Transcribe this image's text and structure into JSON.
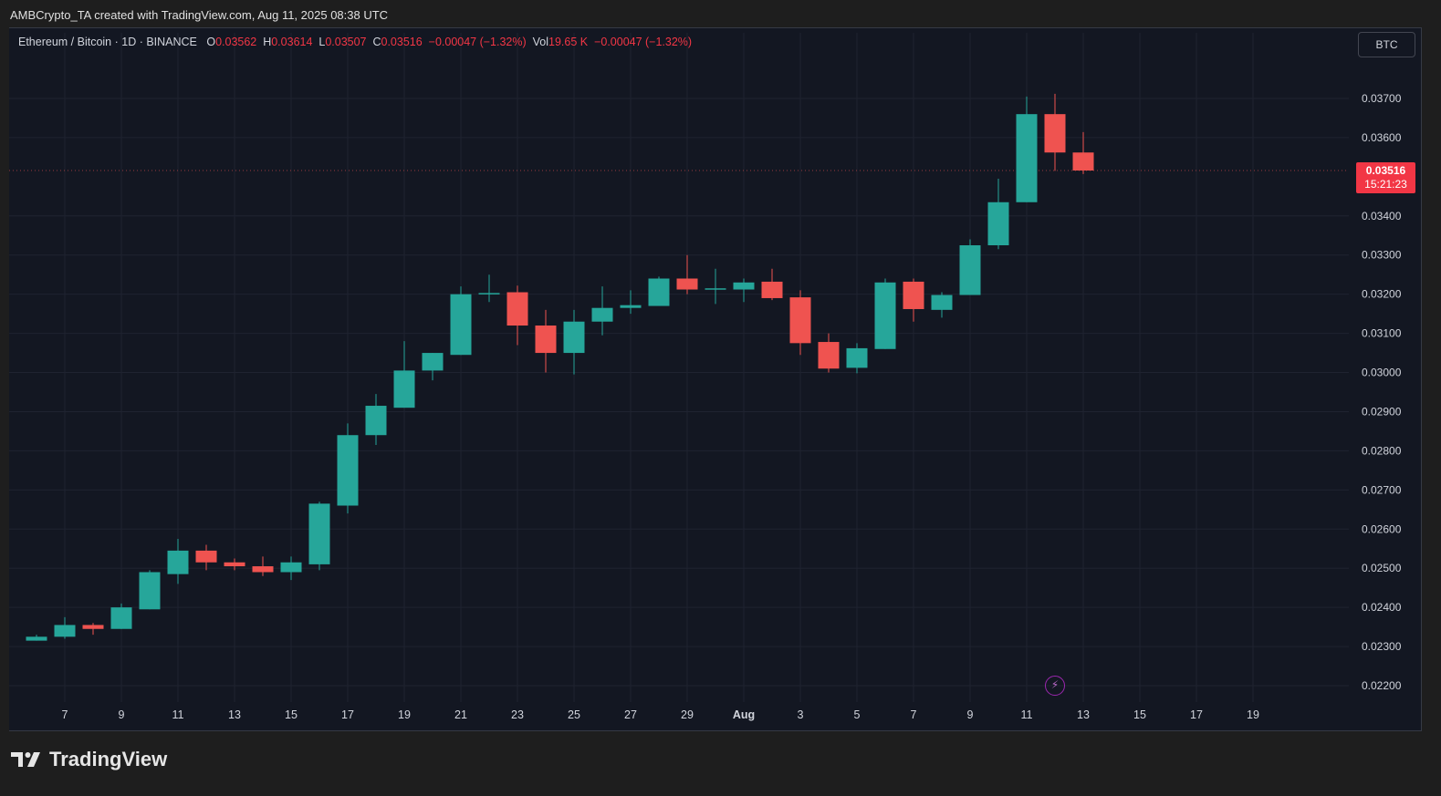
{
  "header": {
    "attribution": "AMBCrypto_TA created with TradingView.com, Aug 11, 2025 08:38 UTC"
  },
  "legend": {
    "symbol": "Ethereum / Bitcoin · 1D · BINANCE",
    "open_label": "O",
    "open": "0.03562",
    "high_label": "H",
    "high": "0.03614",
    "low_label": "L",
    "low": "0.03507",
    "close_label": "C",
    "close": "0.03516",
    "change": "−0.00047 (−1.32%)",
    "vol_label": "Vol",
    "vol": "19.65 K",
    "vol_change": "−0.00047 (−1.32%)"
  },
  "unit_button": "BTC",
  "price_badge": {
    "price": "0.03516",
    "countdown": "15:21:23"
  },
  "brand": "TradingView",
  "colors": {
    "up": "#26a69a",
    "down": "#ef5350",
    "background": "#131722",
    "grid": "#1f2330",
    "text": "#d1d4dc"
  },
  "chart_data": {
    "type": "candlestick",
    "symbol": "ETHBTC",
    "interval": "1D",
    "y_ticks": [
      "0.02200",
      "0.02300",
      "0.02400",
      "0.02500",
      "0.02600",
      "0.02700",
      "0.02800",
      "0.02900",
      "0.03000",
      "0.03100",
      "0.03200",
      "0.03300",
      "0.03400",
      "0.03600",
      "0.03700"
    ],
    "x_ticks": [
      "7",
      "9",
      "11",
      "13",
      "15",
      "17",
      "19",
      "21",
      "23",
      "25",
      "27",
      "29",
      "Aug",
      "3",
      "5",
      "7",
      "9",
      "11",
      "13",
      "15",
      "17",
      "19"
    ],
    "ylim": [
      0.0217,
      0.0385
    ],
    "candles": [
      {
        "date": "Jul 6",
        "o": 0.02315,
        "h": 0.0233,
        "l": 0.02315,
        "c": 0.02325
      },
      {
        "date": "Jul 7",
        "o": 0.02325,
        "h": 0.02375,
        "l": 0.0232,
        "c": 0.02355
      },
      {
        "date": "Jul 8",
        "o": 0.02355,
        "h": 0.0236,
        "l": 0.0233,
        "c": 0.02345
      },
      {
        "date": "Jul 9",
        "o": 0.02345,
        "h": 0.0241,
        "l": 0.02345,
        "c": 0.024
      },
      {
        "date": "Jul 10",
        "o": 0.02395,
        "h": 0.02495,
        "l": 0.02395,
        "c": 0.0249
      },
      {
        "date": "Jul 11",
        "o": 0.02485,
        "h": 0.02575,
        "l": 0.0246,
        "c": 0.02545
      },
      {
        "date": "Jul 12",
        "o": 0.02545,
        "h": 0.0256,
        "l": 0.02495,
        "c": 0.02515
      },
      {
        "date": "Jul 13",
        "o": 0.02515,
        "h": 0.02525,
        "l": 0.02495,
        "c": 0.02505
      },
      {
        "date": "Jul 14",
        "o": 0.02505,
        "h": 0.0253,
        "l": 0.0248,
        "c": 0.0249
      },
      {
        "date": "Jul 15",
        "o": 0.0249,
        "h": 0.0253,
        "l": 0.0247,
        "c": 0.02515
      },
      {
        "date": "Jul 16",
        "o": 0.0251,
        "h": 0.0267,
        "l": 0.02495,
        "c": 0.02665
      },
      {
        "date": "Jul 17",
        "o": 0.0266,
        "h": 0.0287,
        "l": 0.0264,
        "c": 0.0284
      },
      {
        "date": "Jul 18",
        "o": 0.0284,
        "h": 0.02945,
        "l": 0.02815,
        "c": 0.02915
      },
      {
        "date": "Jul 19",
        "o": 0.0291,
        "h": 0.0308,
        "l": 0.0291,
        "c": 0.03005
      },
      {
        "date": "Jul 20",
        "o": 0.03005,
        "h": 0.0305,
        "l": 0.0298,
        "c": 0.0305
      },
      {
        "date": "Jul 21",
        "o": 0.03045,
        "h": 0.0322,
        "l": 0.03045,
        "c": 0.032
      },
      {
        "date": "Jul 22",
        "o": 0.032,
        "h": 0.0325,
        "l": 0.0318,
        "c": 0.03203
      },
      {
        "date": "Jul 23",
        "o": 0.03205,
        "h": 0.03222,
        "l": 0.0307,
        "c": 0.0312
      },
      {
        "date": "Jul 24",
        "o": 0.0312,
        "h": 0.0316,
        "l": 0.03,
        "c": 0.0305
      },
      {
        "date": "Jul 25",
        "o": 0.0305,
        "h": 0.0316,
        "l": 0.02995,
        "c": 0.0313
      },
      {
        "date": "Jul 26",
        "o": 0.0313,
        "h": 0.0322,
        "l": 0.03095,
        "c": 0.03165
      },
      {
        "date": "Jul 27",
        "o": 0.03165,
        "h": 0.0321,
        "l": 0.0315,
        "c": 0.03172
      },
      {
        "date": "Jul 28",
        "o": 0.0317,
        "h": 0.03245,
        "l": 0.0317,
        "c": 0.0324
      },
      {
        "date": "Jul 29",
        "o": 0.0324,
        "h": 0.033,
        "l": 0.032,
        "c": 0.03212
      },
      {
        "date": "Jul 30",
        "o": 0.03213,
        "h": 0.03265,
        "l": 0.03175,
        "c": 0.03215
      },
      {
        "date": "Jul 31",
        "o": 0.03212,
        "h": 0.0324,
        "l": 0.0318,
        "c": 0.0323
      },
      {
        "date": "Aug 1",
        "o": 0.03232,
        "h": 0.03265,
        "l": 0.03185,
        "c": 0.0319
      },
      {
        "date": "Aug 2",
        "o": 0.03192,
        "h": 0.0321,
        "l": 0.03045,
        "c": 0.03075
      },
      {
        "date": "Aug 3",
        "o": 0.03078,
        "h": 0.031,
        "l": 0.03,
        "c": 0.0301
      },
      {
        "date": "Aug 4",
        "o": 0.03012,
        "h": 0.03075,
        "l": 0.02998,
        "c": 0.03062
      },
      {
        "date": "Aug 5",
        "o": 0.0306,
        "h": 0.0324,
        "l": 0.0306,
        "c": 0.0323
      },
      {
        "date": "Aug 6",
        "o": 0.03232,
        "h": 0.0324,
        "l": 0.0313,
        "c": 0.03162
      },
      {
        "date": "Aug 7",
        "o": 0.0316,
        "h": 0.03205,
        "l": 0.0314,
        "c": 0.03198
      },
      {
        "date": "Aug 8",
        "o": 0.03198,
        "h": 0.0334,
        "l": 0.03198,
        "c": 0.03325
      },
      {
        "date": "Aug 9",
        "o": 0.03325,
        "h": 0.03495,
        "l": 0.03315,
        "c": 0.03435
      },
      {
        "date": "Aug 10",
        "o": 0.03435,
        "h": 0.03705,
        "l": 0.03435,
        "c": 0.0366
      },
      {
        "date": "Aug 11",
        "o": 0.0366,
        "h": 0.03712,
        "l": 0.03515,
        "c": 0.03562
      },
      {
        "date": "Aug 12",
        "o": 0.03562,
        "h": 0.03614,
        "l": 0.03507,
        "c": 0.03516
      }
    ]
  }
}
